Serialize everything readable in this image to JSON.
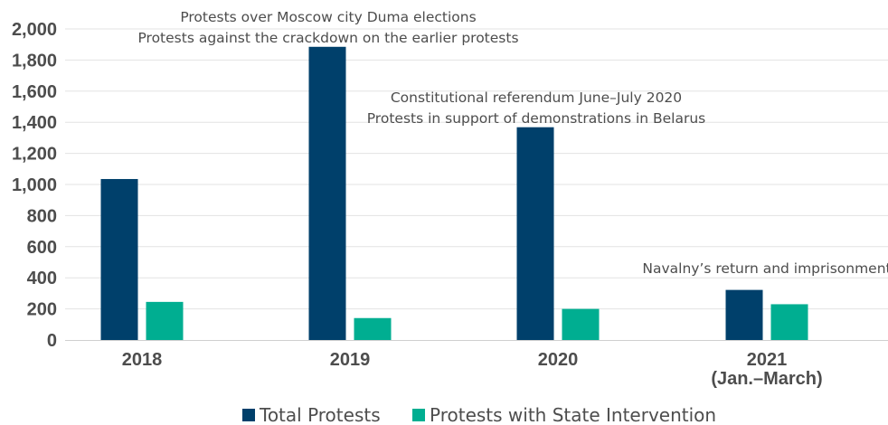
{
  "chart_data": {
    "type": "bar",
    "categories": [
      [
        "2018"
      ],
      [
        "2019"
      ],
      [
        "2020"
      ],
      [
        "2021",
        "(Jan.–March)"
      ]
    ],
    "series": [
      {
        "name": "Total Protests",
        "color": "#00406b",
        "values": [
          1035,
          1885,
          1368,
          322
        ]
      },
      {
        "name": "Protests with State Intervention",
        "color": "#00ae91",
        "values": [
          245,
          141,
          200,
          230
        ]
      }
    ],
    "ylim": [
      0,
      2000
    ],
    "yticks": [
      0,
      200,
      400,
      600,
      800,
      1000,
      1200,
      1400,
      1600,
      1800,
      2000
    ],
    "ytick_labels": [
      "0",
      "200",
      "400",
      "600",
      "800",
      "1,000",
      "1,200",
      "1,400",
      "1,600",
      "1,800",
      "2,000"
    ],
    "grid": true,
    "legend_position": "bottom",
    "annotations": [
      {
        "category": 1,
        "lines": [
          "Protests over Moscow city Duma elections",
          "Protests against the crackdown on the earlier protests"
        ]
      },
      {
        "category": 2,
        "lines": [
          "Constitutional referendum June–July 2020",
          "Protests in support of demonstrations in Belarus"
        ]
      },
      {
        "category": 3,
        "lines": [
          "Navalny’s return and imprisonment"
        ]
      }
    ]
  }
}
